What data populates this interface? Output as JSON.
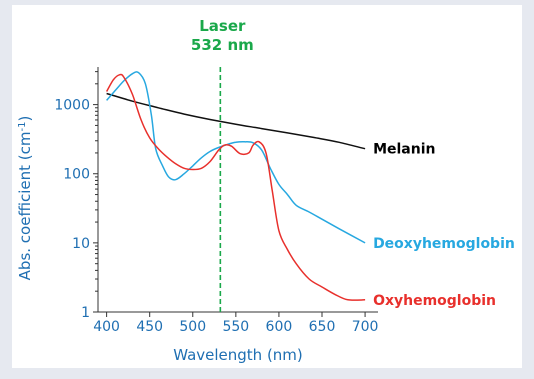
{
  "chart_data": {
    "type": "line",
    "xlabel": "Wavelength (nm)",
    "ylabel": "Abs. coefficient (cm-1)",
    "ylabel_main": "Abs. coefficient (cm",
    "ylabel_sup": "-1",
    "ylabel_tail": ")",
    "xlim": [
      390,
      715
    ],
    "ylim": [
      1,
      3500
    ],
    "yscale": "log",
    "x_ticks": [
      400,
      450,
      500,
      550,
      600,
      650,
      700
    ],
    "x_tick_labels": [
      "400",
      "450",
      "500",
      "550",
      "600",
      "650",
      "700"
    ],
    "y_ticks": [
      1,
      10,
      100,
      1000
    ],
    "y_tick_labels": [
      "1",
      "10",
      "100",
      "1000"
    ],
    "axis_color": "#1f6fb2",
    "grid": false,
    "legend": "inline labels at line ends",
    "annotation": {
      "x": 532,
      "line1": "Laser",
      "line2": "532 nm",
      "color": "#1aa84a"
    },
    "series": [
      {
        "name": "Melanin",
        "color": "#111111",
        "label_x": 700,
        "points": [
          [
            400,
            1450
          ],
          [
            430,
            1120
          ],
          [
            460,
            900
          ],
          [
            490,
            730
          ],
          [
            520,
            610
          ],
          [
            550,
            520
          ],
          [
            580,
            450
          ],
          [
            610,
            390
          ],
          [
            640,
            335
          ],
          [
            670,
            285
          ],
          [
            700,
            230
          ]
        ]
      },
      {
        "name": "Deoxyhemoglobin",
        "color": "#27a8e0",
        "label_x": 700,
        "points": [
          [
            400,
            1150
          ],
          [
            410,
            1600
          ],
          [
            420,
            2200
          ],
          [
            430,
            2800
          ],
          [
            437,
            2900
          ],
          [
            445,
            2000
          ],
          [
            452,
            700
          ],
          [
            457,
            230
          ],
          [
            465,
            130
          ],
          [
            472,
            90
          ],
          [
            480,
            82
          ],
          [
            490,
            100
          ],
          [
            500,
            130
          ],
          [
            510,
            170
          ],
          [
            520,
            210
          ],
          [
            530,
            240
          ],
          [
            540,
            265
          ],
          [
            550,
            285
          ],
          [
            560,
            290
          ],
          [
            570,
            280
          ],
          [
            580,
            220
          ],
          [
            590,
            120
          ],
          [
            600,
            70
          ],
          [
            610,
            50
          ],
          [
            620,
            35
          ],
          [
            635,
            28
          ],
          [
            650,
            22
          ],
          [
            670,
            16
          ],
          [
            700,
            10
          ]
        ]
      },
      {
        "name": "Oxyhemoglobin",
        "color": "#e8302c",
        "label_x": 700,
        "points": [
          [
            400,
            1550
          ],
          [
            408,
            2300
          ],
          [
            415,
            2700
          ],
          [
            420,
            2500
          ],
          [
            430,
            1400
          ],
          [
            440,
            600
          ],
          [
            450,
            330
          ],
          [
            460,
            230
          ],
          [
            470,
            175
          ],
          [
            480,
            140
          ],
          [
            490,
            120
          ],
          [
            500,
            115
          ],
          [
            510,
            120
          ],
          [
            520,
            150
          ],
          [
            530,
            220
          ],
          [
            537,
            260
          ],
          [
            545,
            250
          ],
          [
            555,
            195
          ],
          [
            565,
            200
          ],
          [
            570,
            260
          ],
          [
            577,
            290
          ],
          [
            585,
            200
          ],
          [
            592,
            60
          ],
          [
            600,
            15
          ],
          [
            610,
            8
          ],
          [
            620,
            5
          ],
          [
            635,
            3
          ],
          [
            650,
            2.3
          ],
          [
            665,
            1.8
          ],
          [
            680,
            1.5
          ],
          [
            700,
            1.5
          ]
        ]
      }
    ]
  }
}
